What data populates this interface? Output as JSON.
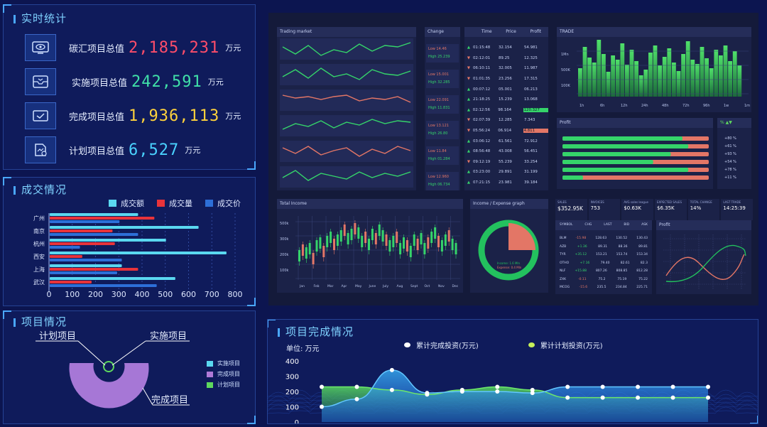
{
  "realtime": {
    "title": "实时统计",
    "stats": [
      {
        "label": "碳汇项目总值",
        "value": "2,185,231",
        "unit": "万元",
        "color": "#ff4d6a",
        "icon": "eye-icon"
      },
      {
        "label": "实施项目总值",
        "value": "242,591",
        "unit": "万元",
        "color": "#40e0a8",
        "icon": "inbox-icon"
      },
      {
        "label": "完成项目总值",
        "value": "1,936,113",
        "unit": "万元",
        "color": "#ffd23c",
        "icon": "check-mail-icon"
      },
      {
        "label": "计划项目总值",
        "value": "6,527",
        "unit": "万元",
        "color": "#4ad2ff",
        "icon": "document-icon"
      }
    ]
  },
  "deals": {
    "title": "成交情况",
    "chart_data": {
      "type": "bar",
      "orientation": "horizontal",
      "categories": [
        "广州",
        "南京",
        "杭州",
        "西安",
        "上海",
        "武汉"
      ],
      "series": [
        {
          "name": "成交额",
          "color": "#5ad8f0",
          "values": [
            380,
            640,
            500,
            760,
            310,
            540
          ]
        },
        {
          "name": "成交量",
          "color": "#e8333a",
          "values": [
            450,
            270,
            280,
            140,
            380,
            180
          ]
        },
        {
          "name": "成交价",
          "color": "#2d6fd8",
          "values": [
            300,
            380,
            130,
            310,
            290,
            460
          ]
        }
      ],
      "xlim": [
        0,
        800
      ],
      "xticks": [
        "0",
        "100",
        "200",
        "300",
        "400",
        "500",
        "600",
        "700",
        "800"
      ]
    }
  },
  "projects": {
    "title": "项目情况",
    "labels": {
      "plan": "计划项目",
      "impl": "实施项目",
      "done": "完成项目"
    },
    "legend": [
      {
        "name": "实施项目",
        "color": "#5ad8f0"
      },
      {
        "name": "完成项目",
        "color": "#b07ad8"
      },
      {
        "name": "计划项目",
        "color": "#5ed85e"
      }
    ],
    "chart_data": {
      "type": "pie",
      "slices": [
        {
          "name": "实施项目",
          "value": 1
        },
        {
          "name": "完成项目",
          "value": 92
        },
        {
          "name": "计划项目",
          "value": 1
        }
      ]
    }
  },
  "completion": {
    "title": "项目完成情况",
    "unit": "单位: 万元",
    "legend": [
      {
        "name": "累计完成投资(万元)",
        "color": "#ffffff"
      },
      {
        "name": "累计计划投资(万元)",
        "color": "#c6f05a"
      }
    ],
    "chart_data": {
      "type": "area",
      "y_ticks": [
        "0",
        "100",
        "200",
        "300",
        "400"
      ],
      "ylim": [
        0,
        400
      ],
      "series": [
        {
          "name": "累计完成投资(万元)",
          "values": [
            100,
            150,
            340,
            190,
            200,
            200,
            190,
            230,
            230,
            230,
            230,
            230
          ]
        },
        {
          "name": "累计计划投资(万元)",
          "values": [
            230,
            230,
            210,
            180,
            210,
            230,
            210,
            160,
            160,
            160,
            160,
            160
          ]
        }
      ]
    }
  },
  "dashboard": {
    "trading_title": "Trading market",
    "change_title": "Change",
    "trade_title": "TRADE",
    "profit_title": "Profit",
    "total_income_title": "Total Income",
    "income_expense_title": "Income / Expense graph",
    "table_headers": [
      "Time",
      "Price",
      "Profit"
    ],
    "table_rows": [
      [
        "01:15:48",
        "32.154",
        "54.981"
      ],
      [
        "02:12:01",
        "89.25",
        "12.325"
      ],
      [
        "06:10:11",
        "32.005",
        "11.987"
      ],
      [
        "01:01:35",
        "23.256",
        "17.315"
      ],
      [
        "00:07:12",
        "05.001",
        "06.213"
      ],
      [
        "21:18:25",
        "15.239",
        "13.068"
      ],
      [
        "02:12:56",
        "98.164",
        "120.327"
      ],
      [
        "02:07:39",
        "12.285",
        "7.343"
      ],
      [
        "05:56:24",
        "06.914",
        "4.811"
      ],
      [
        "03:06:12",
        "61.561",
        "72.912"
      ],
      [
        "08:56:48",
        "43.008",
        "56.451"
      ],
      [
        "09:12:19",
        "55.239",
        "33.254"
      ],
      [
        "03:23:00",
        "29.891",
        "31.199"
      ],
      [
        "07:21:15",
        "23.981",
        "39.184"
      ]
    ],
    "change_rows": [
      {
        "low": "14.46",
        "high": "25.239"
      },
      {
        "low": "15.001",
        "high": "32.285"
      },
      {
        "low": "22.091",
        "high": "11.831"
      },
      {
        "low": "13.121",
        "high": "26.80"
      },
      {
        "low": "11.84",
        "high": "01.284"
      },
      {
        "low": "12.960",
        "high": "06.734"
      }
    ],
    "trade_xticks": [
      "1h",
      "6h",
      "12h",
      "24h",
      "48h",
      "72h",
      "96h",
      "1w",
      "1m"
    ],
    "trade_yticks": [
      "1Mn",
      "500K",
      "100K"
    ],
    "profit_pcts": [
      "+80 %",
      "+61 %",
      "+93 %",
      "+54 %",
      "+78 %",
      "+11 %"
    ],
    "income_months": [
      "Jan",
      "Feb",
      "Mar",
      "Apr",
      "May",
      "June",
      "July",
      "Aug",
      "Sept",
      "Oct",
      "Nov",
      "Dec"
    ],
    "income_yticks": [
      "500k",
      "300k",
      "200k",
      "100k"
    ],
    "donut_text": [
      "Income: 1.6 Mln",
      "Expense: 0.4 Mln"
    ],
    "kpis": [
      {
        "label": "SALES",
        "value": "$352.95K"
      },
      {
        "label": "INVOICES",
        "value": "753"
      },
      {
        "label": "AVG sales league",
        "value": "$0.63K"
      },
      {
        "label": "EXPECTED SALES",
        "value": "$6.35K"
      },
      {
        "label": "TOTAL CHANGE",
        "value": "14%"
      },
      {
        "label": "LAST TRADE",
        "value": "14:25:39"
      }
    ],
    "symbol_headers": [
      "SYMBOL",
      "CHG",
      "LAST",
      "BID",
      "ASK"
    ],
    "symbols": [
      [
        "BLM",
        "-15.98",
        "128.63",
        "130.52",
        "130.43"
      ],
      [
        "AZB",
        "+1.36",
        "89.31",
        "88.36",
        "89.81"
      ],
      [
        "TYR",
        "+35.12",
        "153.21",
        "153.74",
        "153.34"
      ],
      [
        "OTHO",
        "+7.16",
        "79.40",
        "82.61",
        "82.3"
      ],
      [
        "NLF",
        "+15.88",
        "807.26",
        "808.85",
        "812.28"
      ],
      [
        "ZXK",
        "-0.11",
        "75.2",
        "75.19",
        "75.22"
      ],
      [
        "MCOG",
        "-15.6",
        "235.5",
        "234.84",
        "225.71"
      ]
    ],
    "profit_small_title": "Profit"
  }
}
